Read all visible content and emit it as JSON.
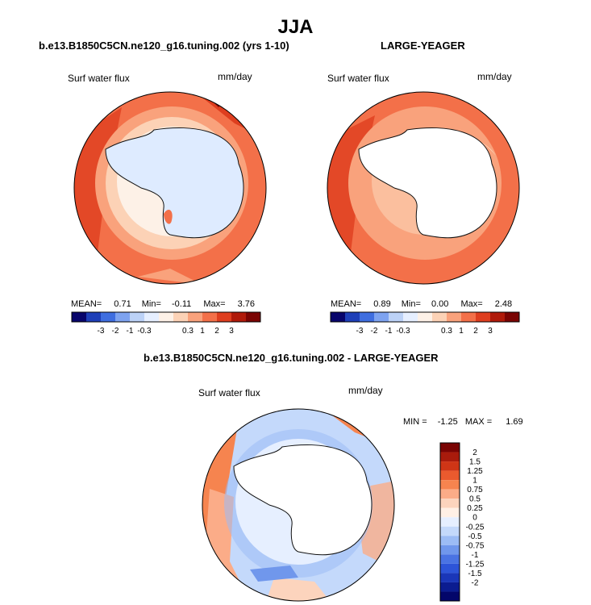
{
  "title": "JJA",
  "panels": [
    {
      "subtitle": "b.e13.B1850C5CN.ne120_g16.tuning.002 (yrs 1-10)",
      "variable": "Surf water flux",
      "units": "mm/day",
      "stats": {
        "mean_label": "MEAN=",
        "mean": "0.71",
        "min_label": "Min=",
        "min": "-0.11",
        "max_label": "Max=",
        "max": "3.76"
      }
    },
    {
      "subtitle": "LARGE-YEAGER",
      "variable": "Surf water flux",
      "units": "mm/day",
      "stats": {
        "mean_label": "MEAN=",
        "mean": "0.89",
        "min_label": "Min=",
        "min": "0.00",
        "max_label": "Max=",
        "max": "2.48"
      }
    }
  ],
  "top_colorbar": {
    "colors": [
      "#08056b",
      "#1e3fb8",
      "#3f6ee0",
      "#7ea3f0",
      "#bcd2f7",
      "#e6efff",
      "#fdf1e7",
      "#fcd2b6",
      "#f9a27c",
      "#f37049",
      "#de3e1f",
      "#b01a0a",
      "#7a0403"
    ],
    "labels": [
      "-3",
      "-2",
      "-1",
      "-0.3",
      "0.3",
      "1",
      "2",
      "3"
    ]
  },
  "diff_panel": {
    "subtitle": "b.e13.B1850C5CN.ne120_g16.tuning.002 - LARGE-YEAGER",
    "variable": "Surf water flux",
    "units": "mm/day",
    "min_label": "MIN =",
    "min": "-1.25",
    "max_label": "MAX =",
    "max": "1.69"
  },
  "diff_colorbar": {
    "colors": [
      "#7a0403",
      "#a91b0c",
      "#cf3516",
      "#ea5a2e",
      "#f6844f",
      "#fbac88",
      "#fcd4bd",
      "#fff0e5",
      "#e6efff",
      "#c4d9fb",
      "#9cbcf5",
      "#7097ec",
      "#4a73e3",
      "#2d54d8",
      "#1a36b8",
      "#0b1c90",
      "#03066a"
    ],
    "labels": [
      "2",
      "1.5",
      "1.25",
      "1",
      "0.75",
      "0.5",
      "0.25",
      "0",
      "-0.25",
      "-0.5",
      "-0.75",
      "-1",
      "-1.25",
      "-1.5",
      "-2"
    ]
  }
}
